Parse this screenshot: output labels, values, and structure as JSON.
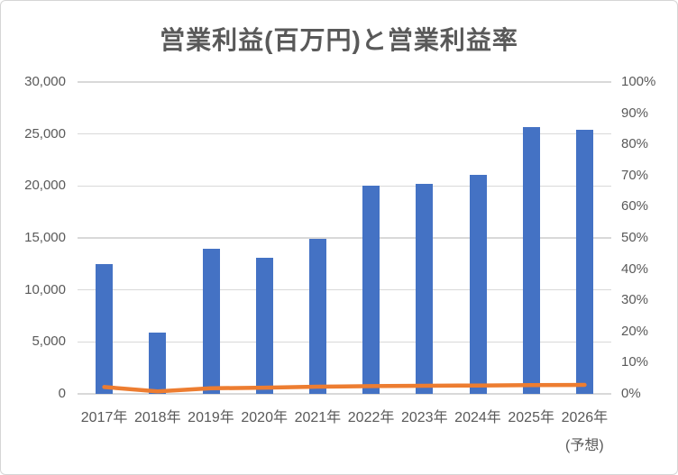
{
  "title": "営業利益(百万円)と営業利益率",
  "colors": {
    "bar": "#4472C4",
    "line": "#ED7D31",
    "gridline": "#D9D9D9",
    "axis_text": "#595959",
    "title_text": "#595959",
    "chart_border": "#D6D6D6",
    "background": "#FFFFFF"
  },
  "chart_data": {
    "type": "bar",
    "subtype": "combo-bar-line",
    "title": "営業利益(百万円)と営業利益率",
    "categories": [
      "2017年",
      "2018年",
      "2019年",
      "2020年",
      "2021年",
      "2022年",
      "2023年",
      "2024年",
      "2025年",
      "2026年"
    ],
    "x_note": "(予想)",
    "series": [
      {
        "name": "営業利益(百万円)",
        "type": "bar",
        "axis": "left",
        "color": "#4472C4",
        "values": [
          12500,
          5900,
          14000,
          13100,
          14900,
          20000,
          20200,
          21100,
          25700,
          25400
        ]
      },
      {
        "name": "営業利益率",
        "type": "line",
        "axis": "right",
        "color": "#ED7D31",
        "values": [
          2.2,
          0.8,
          1.8,
          2.0,
          2.3,
          2.5,
          2.6,
          2.7,
          2.8,
          2.9
        ]
      }
    ],
    "left_axis": {
      "min": 0,
      "max": 30000,
      "step": 5000,
      "tick_labels": [
        "0",
        "5,000",
        "10,000",
        "15,000",
        "20,000",
        "25,000",
        "30,000"
      ]
    },
    "right_axis": {
      "min": 0,
      "max": 100,
      "step": 10,
      "tick_labels": [
        "0%",
        "10%",
        "20%",
        "30%",
        "40%",
        "50%",
        "60%",
        "70%",
        "80%",
        "90%",
        "100%"
      ]
    },
    "grid": true,
    "legend_position": "none"
  }
}
